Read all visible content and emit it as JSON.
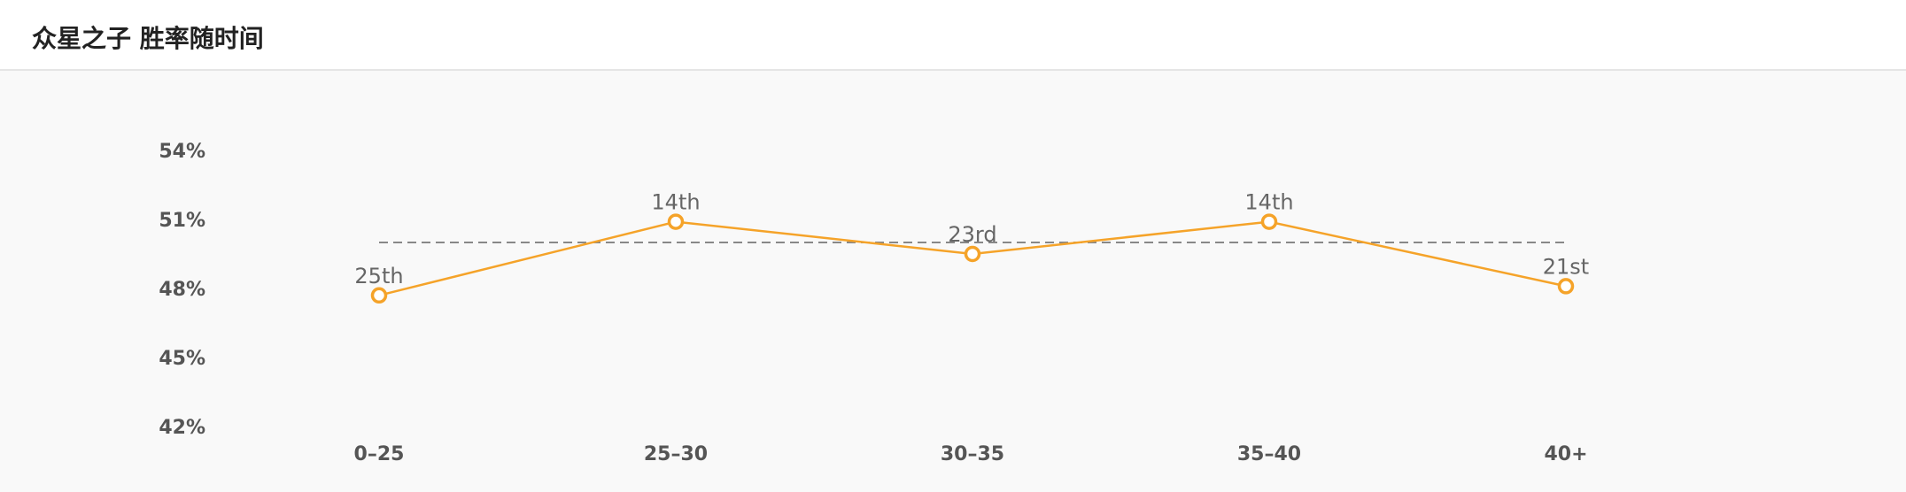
{
  "header": {
    "title": "众星之子 胜率随时间"
  },
  "colors": {
    "line": "#f5a329",
    "reference": "#888888"
  },
  "chart_data": {
    "type": "line",
    "title": "众星之子 胜率随时间",
    "xlabel": "",
    "ylabel": "",
    "categories": [
      "0–25",
      "25–30",
      "30–35",
      "35–40",
      "40+"
    ],
    "yticks": [
      54,
      51,
      48,
      45,
      42
    ],
    "ytick_labels": [
      "54%",
      "51%",
      "48%",
      "45%",
      "42%"
    ],
    "ylim": [
      42,
      54
    ],
    "series": [
      {
        "values": [
          47.7,
          50.9,
          49.5,
          50.9,
          48.1
        ],
        "labels": [
          "25th",
          "14th",
          "23rd",
          "14th",
          "21st"
        ]
      }
    ],
    "reference_line": 50,
    "grid": false
  }
}
